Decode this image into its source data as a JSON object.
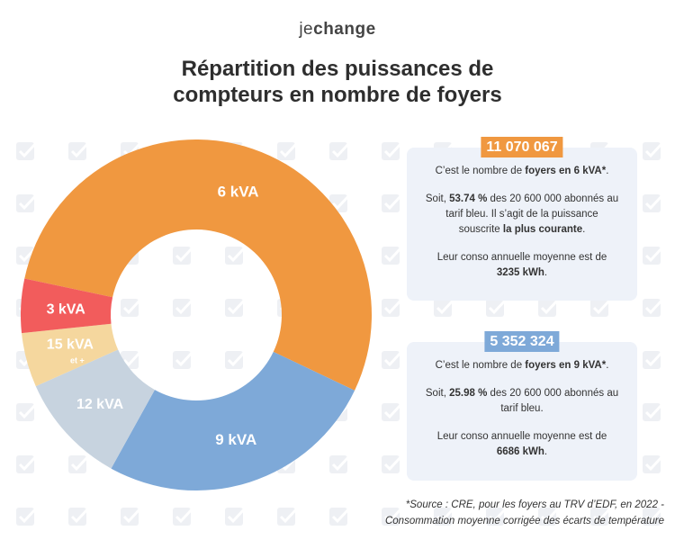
{
  "brand": {
    "part1": "je",
    "part2": "change"
  },
  "title_line1": "Répartition des puissances de",
  "title_line2": "compteurs en nombre de foyers",
  "chart_data": {
    "type": "pie",
    "title": "Répartition des puissances de compteurs en nombre de foyers",
    "slices": [
      {
        "label": "6 kVA",
        "value": 53.74,
        "color": "#f09840",
        "text_color": "#ffffff"
      },
      {
        "label": "9 kVA",
        "value": 25.98,
        "color": "#7ea9d8",
        "text_color": "#ffffff"
      },
      {
        "label": "12 kVA",
        "value": 10.3,
        "color": "#c7d3df",
        "text_color": "#ffffff"
      },
      {
        "label": "15 kVA",
        "sublabel": "et +",
        "value": 5.0,
        "color": "#f5d79e",
        "text_color": "#ffffff"
      },
      {
        "label": "3 kVA",
        "value": 4.98,
        "color": "#f25c5c",
        "text_color": "#ffffff"
      }
    ]
  },
  "card_6": {
    "badge": "11 070 067",
    "line1_pre": "C’est le nombre de ",
    "line1_bold": "foyers en 6 kVA*",
    "line1_post": ".",
    "line2_pre": "Soit, ",
    "line2_bold": "53.74 %",
    "line2_post": " des 20 600 000 abonnés au tarif bleu. Il s’agit de la puissance souscrite ",
    "line2_bold2": "la plus courante",
    "line2_end": ".",
    "line3_pre": "Leur conso annuelle moyenne est de ",
    "line3_bold": "3235 kWh",
    "line3_post": "."
  },
  "card_9": {
    "badge": "5 352 324",
    "line1_pre": "C’est le nombre de ",
    "line1_bold": "foyers en 9 kVA*",
    "line1_post": ".",
    "line2_pre": "Soit, ",
    "line2_bold": "25.98 %",
    "line2_post": " des 20 600 000 abonnés au tarif bleu.",
    "line3_pre": "Leur conso annuelle moyenne est de ",
    "line3_bold": "6686 kWh",
    "line3_post": "."
  },
  "source_line1": "*Source : CRE, pour les foyers au TRV d’EDF, en 2022 -",
  "source_line2": "Consommation moyenne corrigée des écarts de température",
  "colors": {
    "pattern": "#eef0f4",
    "card_bg": "#eef2f9"
  }
}
